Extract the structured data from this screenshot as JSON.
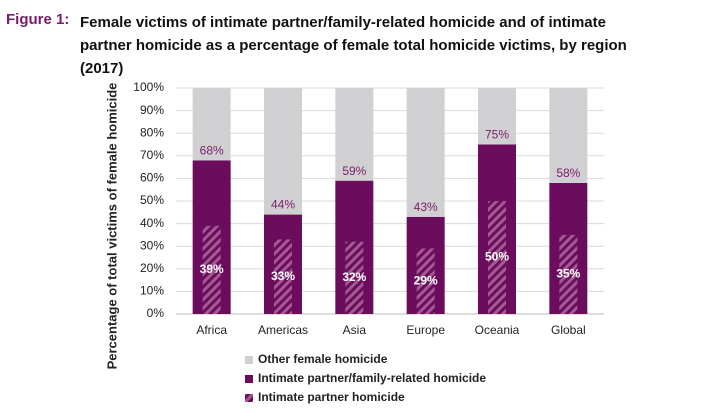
{
  "chart_data": {
    "type": "bar",
    "figure_label": "Figure 1:",
    "title": "Female victims of intimate partner/family-related homicide and of intimate partner homicide as a percentage of female total homicide victims, by region (2017)",
    "y_label": "Percentage of total victims of female homicide",
    "categories": [
      "Africa",
      "Americas",
      "Asia",
      "Europe",
      "Oceania",
      "Global"
    ],
    "series": [
      {
        "name": "Intimate partner/family-related homicide",
        "color": "#6b0d5c",
        "values": [
          68,
          44,
          59,
          43,
          75,
          58
        ],
        "value_labels": [
          "68%",
          "44%",
          "59%",
          "43%",
          "75%",
          "58%"
        ]
      },
      {
        "name": "Other female homicide",
        "color": "#d0d0d2",
        "values": [
          32,
          56,
          41,
          57,
          25,
          42
        ]
      },
      {
        "name": "Intimate partner homicide",
        "color": "#a35a93",
        "values": [
          39,
          33,
          32,
          29,
          50,
          35
        ],
        "value_labels": [
          "39%",
          "33%",
          "32%",
          "29%",
          "50%",
          "35%"
        ]
      }
    ],
    "ylim": [
      0,
      100
    ],
    "yticks": [
      {
        "value": 0,
        "label": "0%"
      },
      {
        "value": 10,
        "label": "10%"
      },
      {
        "value": 20,
        "label": "20%"
      },
      {
        "value": 30,
        "label": "30%"
      },
      {
        "value": 40,
        "label": "40%"
      },
      {
        "value": 50,
        "label": "50%"
      },
      {
        "value": 60,
        "label": "60%"
      },
      {
        "value": 70,
        "label": "70%"
      },
      {
        "value": 80,
        "label": "80%"
      },
      {
        "value": 90,
        "label": "90%"
      },
      {
        "value": 100,
        "label": "100%"
      }
    ],
    "grid": true
  }
}
